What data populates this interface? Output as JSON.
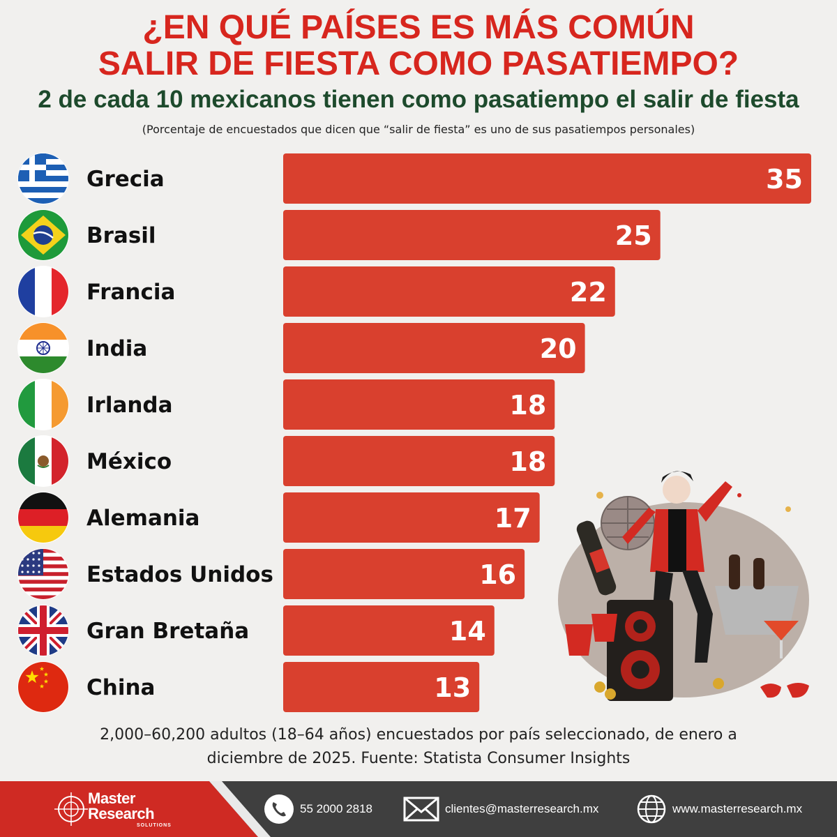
{
  "title_line1": "¿EN QUÉ PAÍSES ES MÁS COMÚN",
  "title_line2": "SALIR DE FIESTA COMO PASATIEMPO?",
  "subtitle": "2 de cada 10 mexicanos tienen como pasatiempo el salir de fiesta",
  "note": "(Porcentaje de encuestados que dicen que “salir de fiesta” es uno de sus pasatiempos personales)",
  "footnote_line1": "2,000–60,200 adultos (18–64 años) encuestados por país seleccionado, de enero a",
  "footnote_line2": "diciembre de 2025. Fuente: Statista Consumer Insights",
  "colors": {
    "title": "#d7261e",
    "subtitle": "#1d4a2c",
    "bar": "#d9402e",
    "footer": "#3f3f3f",
    "footer_accent": "#cf2a23"
  },
  "chart_data": {
    "type": "bar",
    "orientation": "horizontal",
    "categories": [
      "Grecia",
      "Brasil",
      "Francia",
      "India",
      "Irlanda",
      "México",
      "Alemania",
      "Estados Unidos",
      "Gran Bretaña",
      "China"
    ],
    "values": [
      35,
      25,
      22,
      20,
      18,
      18,
      17,
      16,
      14,
      13
    ],
    "flag_icons": [
      "greece-flag-icon",
      "brazil-flag-icon",
      "france-flag-icon",
      "india-flag-icon",
      "ireland-flag-icon",
      "mexico-flag-icon",
      "germany-flag-icon",
      "usa-flag-icon",
      "uk-flag-icon",
      "china-flag-icon"
    ],
    "xlim": [
      0,
      35
    ],
    "grid": false,
    "legend": "none"
  },
  "footer": {
    "logo_line1": "Master",
    "logo_line2": "Research",
    "logo_line3": "SOLUTIONS",
    "phone": "55 2000 2818",
    "email": "clientes@masterresearch.mx",
    "website": "www.masterresearch.mx",
    "phone_icon": "phone-icon",
    "email_icon": "envelope-icon",
    "web_icon": "globe-icon"
  }
}
